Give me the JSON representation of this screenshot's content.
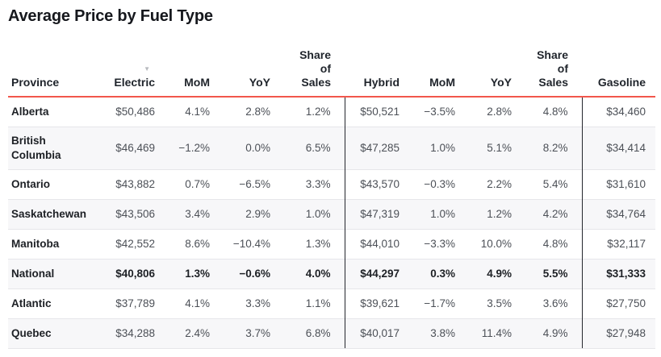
{
  "colors": {
    "header_rule": "#f2564c",
    "stripe": "#f7f7f9",
    "row_border": "#e6e6ea",
    "divider": "#24262d",
    "sort_arrow": "#b7b9be"
  },
  "chart_data": {
    "type": "table",
    "title": "Average Price by Fuel Type",
    "sort_icon": "▼",
    "sorted_column": "Electric",
    "sort_direction": "descending",
    "legend_position": "none",
    "grid": "row-stripes",
    "columns": [
      {
        "key": "province",
        "label": "Province",
        "align": "left"
      },
      {
        "key": "electric",
        "label": "Electric",
        "sorted": true
      },
      {
        "key": "mom_electric",
        "label": "MoM"
      },
      {
        "key": "yoy_electric",
        "label": "YoY"
      },
      {
        "key": "share_electric",
        "label": "Share of Sales",
        "wrap": true
      },
      {
        "key": "hybrid",
        "label": "Hybrid",
        "divider": true
      },
      {
        "key": "mom_hybrid",
        "label": "MoM"
      },
      {
        "key": "yoy_hybrid",
        "label": "YoY"
      },
      {
        "key": "share_hybrid",
        "label": "Share of Sales",
        "wrap": true
      },
      {
        "key": "gasoline",
        "label": "Gasoline",
        "divider": true
      }
    ],
    "rows": [
      {
        "province": "Alberta",
        "electric": "$50,486",
        "mom_electric": "4.1%",
        "yoy_electric": "2.8%",
        "share_electric": "1.2%",
        "hybrid": "$50,521",
        "mom_hybrid": "−3.5%",
        "yoy_hybrid": "2.8%",
        "share_hybrid": "4.8%",
        "gasoline": "$34,460",
        "emphasis": false
      },
      {
        "province": "British Columbia",
        "electric": "$46,469",
        "mom_electric": "−1.2%",
        "yoy_electric": "0.0%",
        "share_electric": "6.5%",
        "hybrid": "$47,285",
        "mom_hybrid": "1.0%",
        "yoy_hybrid": "5.1%",
        "share_hybrid": "8.2%",
        "gasoline": "$34,414",
        "emphasis": false
      },
      {
        "province": "Ontario",
        "electric": "$43,882",
        "mom_electric": "0.7%",
        "yoy_electric": "−6.5%",
        "share_electric": "3.3%",
        "hybrid": "$43,570",
        "mom_hybrid": "−0.3%",
        "yoy_hybrid": "2.2%",
        "share_hybrid": "5.4%",
        "gasoline": "$31,610",
        "emphasis": false
      },
      {
        "province": "Saskatchewan",
        "electric": "$43,506",
        "mom_electric": "3.4%",
        "yoy_electric": "2.9%",
        "share_electric": "1.0%",
        "hybrid": "$47,319",
        "mom_hybrid": "1.0%",
        "yoy_hybrid": "1.2%",
        "share_hybrid": "4.2%",
        "gasoline": "$34,764",
        "emphasis": false
      },
      {
        "province": "Manitoba",
        "electric": "$42,552",
        "mom_electric": "8.6%",
        "yoy_electric": "−10.4%",
        "share_electric": "1.3%",
        "hybrid": "$44,010",
        "mom_hybrid": "−3.3%",
        "yoy_hybrid": "10.0%",
        "share_hybrid": "4.8%",
        "gasoline": "$32,117",
        "emphasis": false
      },
      {
        "province": "National",
        "electric": "$40,806",
        "mom_electric": "1.3%",
        "yoy_electric": "−0.6%",
        "share_electric": "4.0%",
        "hybrid": "$44,297",
        "mom_hybrid": "0.3%",
        "yoy_hybrid": "4.9%",
        "share_hybrid": "5.5%",
        "gasoline": "$31,333",
        "emphasis": true
      },
      {
        "province": "Atlantic",
        "electric": "$37,789",
        "mom_electric": "4.1%",
        "yoy_electric": "3.3%",
        "share_electric": "1.1%",
        "hybrid": "$39,621",
        "mom_hybrid": "−1.7%",
        "yoy_hybrid": "3.5%",
        "share_hybrid": "3.6%",
        "gasoline": "$27,750",
        "emphasis": false
      },
      {
        "province": "Quebec",
        "electric": "$34,288",
        "mom_electric": "2.4%",
        "yoy_electric": "3.7%",
        "share_electric": "6.8%",
        "hybrid": "$40,017",
        "mom_hybrid": "3.8%",
        "yoy_hybrid": "11.4%",
        "share_hybrid": "4.9%",
        "gasoline": "$27,948",
        "emphasis": false
      }
    ]
  }
}
